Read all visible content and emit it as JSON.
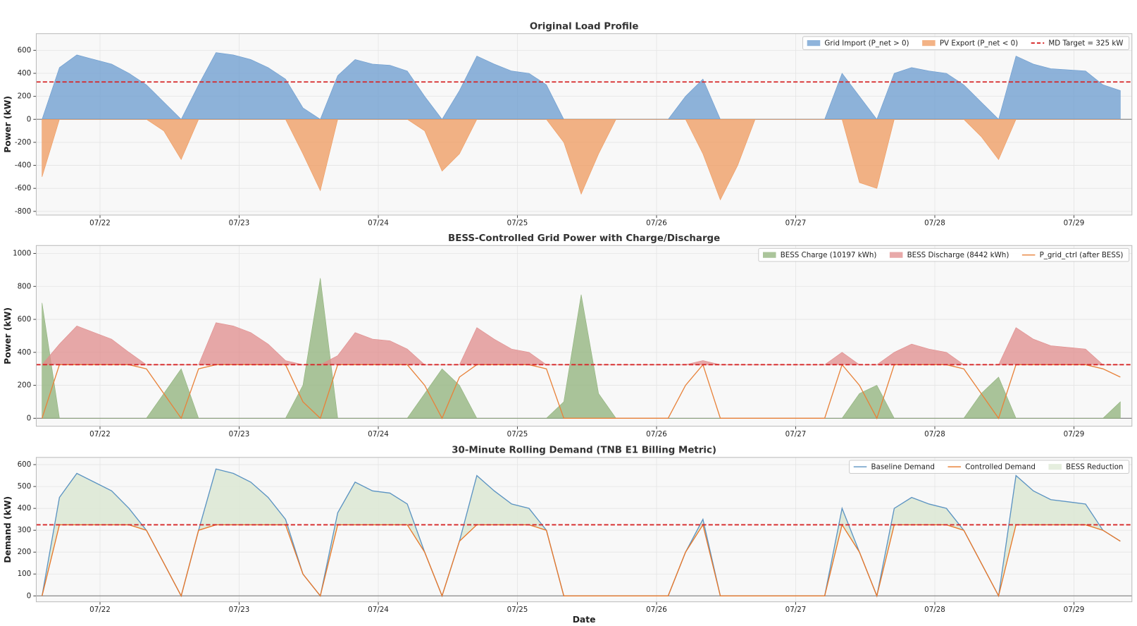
{
  "chart_data": [
    {
      "type": "area",
      "title": "Original Load Profile",
      "ylabel": "Power (kW)",
      "x": [
        2,
        5,
        8,
        11,
        14,
        17,
        20,
        23,
        26,
        29,
        32,
        35,
        38,
        41,
        44,
        47,
        50,
        53,
        56,
        59,
        62,
        65,
        68,
        71,
        74,
        77,
        80,
        83,
        86,
        89,
        92,
        95,
        98,
        101,
        104,
        107,
        110,
        113,
        116,
        119,
        122,
        125,
        128,
        131,
        134,
        137,
        140,
        143,
        146,
        149,
        152,
        155,
        158,
        161,
        164,
        167,
        170,
        173,
        176,
        179,
        182,
        185,
        188
      ],
      "series": [
        {
          "name": "Grid Import (P_net > 0)",
          "kind": "area",
          "color": "#6a9bcf",
          "values": [
            0,
            450,
            560,
            520,
            480,
            400,
            300,
            150,
            0,
            300,
            580,
            560,
            520,
            450,
            350,
            100,
            0,
            380,
            520,
            480,
            470,
            420,
            200,
            0,
            250,
            550,
            480,
            420,
            400,
            300,
            0,
            0,
            0,
            0,
            0,
            0,
            0,
            200,
            350,
            0,
            0,
            0,
            0,
            0,
            0,
            0,
            400,
            200,
            0,
            400,
            450,
            420,
            400,
            300,
            150,
            0,
            550,
            480,
            440,
            430,
            420,
            300,
            250
          ]
        },
        {
          "name": "PV Export (P_net < 0)",
          "kind": "area",
          "color": "#ef9a5e",
          "values": [
            -500,
            0,
            0,
            0,
            0,
            0,
            0,
            -100,
            -350,
            0,
            0,
            0,
            0,
            0,
            0,
            -300,
            -620,
            0,
            0,
            0,
            0,
            0,
            -100,
            -450,
            -300,
            0,
            0,
            0,
            0,
            0,
            -200,
            -650,
            -300,
            0,
            0,
            0,
            0,
            0,
            -300,
            -700,
            -400,
            0,
            0,
            0,
            0,
            0,
            0,
            -550,
            -600,
            0,
            0,
            0,
            0,
            0,
            -150,
            -350,
            0,
            0,
            0,
            0,
            0,
            0,
            0
          ]
        }
      ],
      "target": {
        "value": 325,
        "label": "MD Target = 325 kW",
        "color": "#d62728"
      },
      "xlim": [
        1,
        190
      ],
      "xticks": [
        {
          "value": 12,
          "label": "07/22"
        },
        {
          "value": 36,
          "label": "07/23"
        },
        {
          "value": 60,
          "label": "07/24"
        },
        {
          "value": 84,
          "label": "07/25"
        },
        {
          "value": 108,
          "label": "07/26"
        },
        {
          "value": 132,
          "label": "07/27"
        },
        {
          "value": 156,
          "label": "07/28"
        },
        {
          "value": 180,
          "label": "07/29"
        }
      ],
      "ylim": [
        -832,
        745
      ],
      "yticks": [
        -800,
        -600,
        -400,
        -200,
        0,
        200,
        400,
        600
      ],
      "grid": true,
      "legend": "upper right"
    },
    {
      "type": "area",
      "title": "BESS-Controlled Grid Power with Charge/Discharge",
      "ylabel": "Power (kW)",
      "x": [
        2,
        5,
        8,
        11,
        14,
        17,
        20,
        23,
        26,
        29,
        32,
        35,
        38,
        41,
        44,
        47,
        50,
        53,
        56,
        59,
        62,
        65,
        68,
        71,
        74,
        77,
        80,
        83,
        86,
        89,
        92,
        95,
        98,
        101,
        104,
        107,
        110,
        113,
        116,
        119,
        122,
        125,
        128,
        131,
        134,
        137,
        140,
        143,
        146,
        149,
        152,
        155,
        158,
        161,
        164,
        167,
        170,
        173,
        176,
        179,
        182,
        185,
        188
      ],
      "series": [
        {
          "name": "BESS Charge (10197 kWh)",
          "kind": "area",
          "color": "#8fb27a",
          "values": [
            700,
            0,
            0,
            0,
            0,
            0,
            0,
            150,
            300,
            0,
            0,
            0,
            0,
            0,
            0,
            200,
            850,
            0,
            0,
            0,
            0,
            0,
            150,
            300,
            200,
            0,
            0,
            0,
            0,
            0,
            100,
            750,
            150,
            0,
            0,
            0,
            0,
            0,
            0,
            0,
            0,
            0,
            0,
            0,
            0,
            0,
            0,
            150,
            200,
            0,
            0,
            0,
            0,
            0,
            150,
            250,
            0,
            0,
            0,
            0,
            0,
            0,
            100
          ]
        },
        {
          "name": "BESS Discharge (8442 kWh)",
          "kind": "area",
          "stack_on_target": true,
          "color": "#e08c8c",
          "values": [
            0,
            125,
            235,
            195,
            155,
            75,
            0,
            0,
            0,
            0,
            255,
            235,
            195,
            125,
            25,
            0,
            0,
            55,
            195,
            155,
            145,
            95,
            0,
            0,
            0,
            225,
            155,
            95,
            75,
            0,
            0,
            0,
            0,
            0,
            0,
            0,
            0,
            0,
            25,
            0,
            0,
            0,
            0,
            0,
            0,
            0,
            75,
            0,
            0,
            75,
            125,
            95,
            75,
            0,
            0,
            0,
            225,
            155,
            115,
            105,
            95,
            0,
            0
          ]
        },
        {
          "name": "P_grid_ctrl (after BESS)",
          "kind": "line",
          "color": "#e8823a",
          "values": [
            0,
            325,
            325,
            325,
            325,
            325,
            300,
            150,
            0,
            300,
            325,
            325,
            325,
            325,
            325,
            100,
            0,
            325,
            325,
            325,
            325,
            325,
            200,
            0,
            250,
            325,
            325,
            325,
            325,
            300,
            0,
            0,
            0,
            0,
            0,
            0,
            0,
            200,
            325,
            0,
            0,
            0,
            0,
            0,
            0,
            0,
            325,
            200,
            0,
            325,
            325,
            325,
            325,
            300,
            150,
            0,
            325,
            325,
            325,
            325,
            325,
            300,
            250
          ]
        }
      ],
      "target": {
        "value": 325,
        "color": "#d62728"
      },
      "xlim": [
        1,
        190
      ],
      "xticks": [
        {
          "value": 12,
          "label": "07/22"
        },
        {
          "value": 36,
          "label": "07/23"
        },
        {
          "value": 60,
          "label": "07/24"
        },
        {
          "value": 84,
          "label": "07/25"
        },
        {
          "value": 108,
          "label": "07/26"
        },
        {
          "value": 132,
          "label": "07/27"
        },
        {
          "value": 156,
          "label": "07/28"
        },
        {
          "value": 180,
          "label": "07/29"
        }
      ],
      "ylim": [
        -48,
        1048
      ],
      "yticks": [
        0,
        200,
        400,
        600,
        800,
        1000
      ],
      "grid": true,
      "legend": "upper right"
    },
    {
      "type": "area",
      "title": "30-Minute Rolling Demand (TNB E1 Billing Metric)",
      "ylabel": "Demand (kW)",
      "xlabel": "Date",
      "x": [
        2,
        5,
        8,
        11,
        14,
        17,
        20,
        23,
        26,
        29,
        32,
        35,
        38,
        41,
        44,
        47,
        50,
        53,
        56,
        59,
        62,
        65,
        68,
        71,
        74,
        77,
        80,
        83,
        86,
        89,
        92,
        95,
        98,
        101,
        104,
        107,
        110,
        113,
        116,
        119,
        122,
        125,
        128,
        131,
        134,
        137,
        140,
        143,
        146,
        149,
        152,
        155,
        158,
        161,
        164,
        167,
        170,
        173,
        176,
        179,
        182,
        185,
        188
      ],
      "series": [
        {
          "name": "Baseline Demand",
          "kind": "line",
          "color": "#5b93c2",
          "values": [
            0,
            450,
            560,
            520,
            480,
            400,
            300,
            150,
            0,
            300,
            580,
            560,
            520,
            450,
            350,
            100,
            0,
            380,
            520,
            480,
            470,
            420,
            200,
            0,
            250,
            550,
            480,
            420,
            400,
            300,
            0,
            0,
            0,
            0,
            0,
            0,
            0,
            200,
            350,
            0,
            0,
            0,
            0,
            0,
            0,
            0,
            400,
            200,
            0,
            400,
            450,
            420,
            400,
            300,
            150,
            0,
            550,
            480,
            440,
            430,
            420,
            300,
            250
          ]
        },
        {
          "name": "Controlled Demand",
          "kind": "line",
          "color": "#e8782a",
          "values": [
            0,
            325,
            325,
            325,
            325,
            325,
            300,
            150,
            0,
            300,
            325,
            325,
            325,
            325,
            325,
            100,
            0,
            325,
            325,
            325,
            325,
            325,
            200,
            0,
            250,
            325,
            325,
            325,
            325,
            300,
            0,
            0,
            0,
            0,
            0,
            0,
            0,
            200,
            325,
            0,
            0,
            0,
            0,
            0,
            0,
            0,
            325,
            200,
            0,
            325,
            325,
            325,
            325,
            300,
            150,
            0,
            325,
            325,
            325,
            325,
            325,
            300,
            250
          ]
        }
      ],
      "fill_between": {
        "label": "BESS Reduction",
        "color": "#dce8d3"
      },
      "target": {
        "value": 325,
        "color": "#d62728"
      },
      "xlim": [
        1,
        190
      ],
      "xticks": [
        {
          "value": 12,
          "label": "07/22"
        },
        {
          "value": 36,
          "label": "07/23"
        },
        {
          "value": 60,
          "label": "07/24"
        },
        {
          "value": 84,
          "label": "07/25"
        },
        {
          "value": 108,
          "label": "07/26"
        },
        {
          "value": 132,
          "label": "07/27"
        },
        {
          "value": 156,
          "label": "07/28"
        },
        {
          "value": 180,
          "label": "07/29"
        }
      ],
      "ylim": [
        -27,
        633
      ],
      "yticks": [
        0,
        100,
        200,
        300,
        400,
        500,
        600
      ],
      "grid": true,
      "legend": "upper right"
    }
  ]
}
